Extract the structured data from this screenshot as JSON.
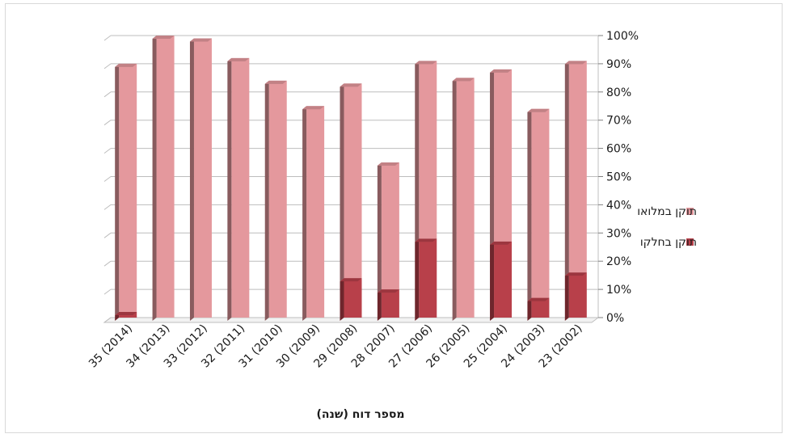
{
  "chart_data": {
    "type": "bar",
    "stacked": true,
    "three_d": true,
    "categories": [
      "35 (2014)",
      "34 (2013)",
      "33 (2012)",
      "32 (2011)",
      "31 (2010)",
      "30 (2009)",
      "29 (2008)",
      "28 (2007)",
      "27 (2006)",
      "26 (2005)",
      "25 (2004)",
      "24 (2003)",
      "23 (2002)"
    ],
    "series": [
      {
        "name": "תוקן בחלקו",
        "color": "#b8404a",
        "values": [
          2,
          0,
          0,
          0,
          0,
          0,
          14,
          10,
          28,
          0,
          27,
          7,
          16
        ]
      },
      {
        "name": "תוקן במלואו",
        "color": "#e4989d",
        "values": [
          88,
          100,
          99,
          92,
          84,
          75,
          69,
          45,
          63,
          85,
          61,
          67,
          75
        ]
      }
    ],
    "ylim": [
      0,
      100
    ],
    "y_ticks": [
      "0%",
      "10%",
      "20%",
      "30%",
      "40%",
      "50%",
      "60%",
      "70%",
      "80%",
      "90%",
      "100%"
    ],
    "y_axis_position": "right",
    "xlabel": "מספר דוח (שנה)",
    "grid": true,
    "legend_position": "right"
  }
}
